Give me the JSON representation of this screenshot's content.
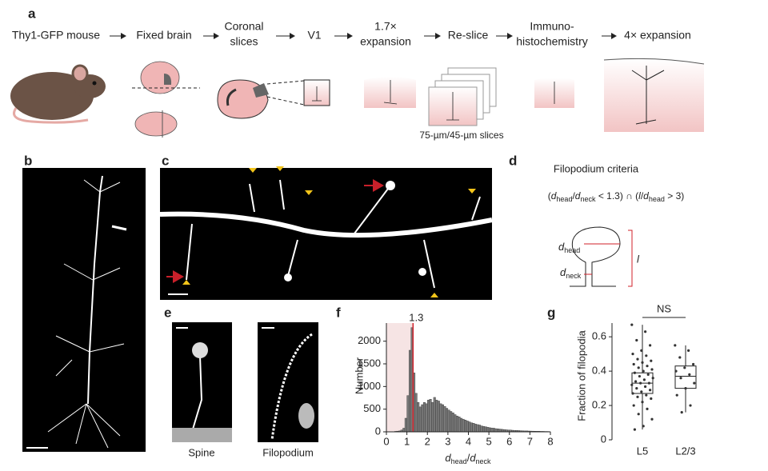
{
  "panel_a": {
    "label": "a",
    "steps": [
      [
        "Thy1-GFP mouse"
      ],
      [
        "Fixed brain"
      ],
      [
        "Coronal",
        "slices"
      ],
      [
        "V1"
      ],
      [
        "1.7×",
        "expansion"
      ],
      [
        "Re-slice"
      ],
      [
        "Immuno-",
        "histochemistry"
      ],
      [
        "4× expansion"
      ]
    ],
    "note": "75-µm/45-µm slices"
  },
  "panel_b": {
    "label": "b"
  },
  "panel_c": {
    "label": "c"
  },
  "panel_d": {
    "label": "d",
    "title": "Filopodium criteria",
    "formula": [
      "(",
      "d",
      "head",
      "/",
      "d",
      "neck",
      " < 1.3) ∩ (",
      "l",
      "/",
      "d",
      "head",
      " > 3)"
    ],
    "diagram_labels": [
      "d",
      "head",
      "d",
      "neck",
      "l"
    ]
  },
  "panel_e": {
    "label": "e",
    "captions": [
      "Spine",
      "Filopodium"
    ]
  },
  "chart_data": [
    {
      "type": "histogram",
      "panel_label": "f",
      "y_label": "Number",
      "x_label": [
        "d",
        "head",
        "/",
        "d",
        "neck"
      ],
      "bins": [
        0,
        0.1,
        0.2,
        0.3,
        0.4,
        0.5,
        0.6,
        0.7,
        0.8,
        0.9,
        1,
        1.1,
        1.2,
        1.3,
        1.4,
        1.5,
        1.6,
        1.7,
        1.8,
        1.9,
        2,
        2.1,
        2.2,
        2.3,
        2.4,
        2.5,
        2.6,
        2.7,
        2.8,
        2.9,
        3,
        3.1,
        3.2,
        3.3,
        3.4,
        3.5,
        3.6,
        3.7,
        3.8,
        3.9,
        4,
        4.1,
        4.2,
        4.3,
        4.4,
        4.5,
        4.6,
        4.7,
        4.8,
        4.9,
        5,
        5.1,
        5.2,
        5.3,
        5.4,
        5.5,
        5.6,
        5.7,
        5.8,
        5.9,
        6,
        6.1,
        6.2,
        6.3,
        6.4,
        6.5,
        6.6,
        6.7,
        6.8,
        6.9,
        7,
        7.1,
        7.2,
        7.3,
        7.4,
        7.5,
        7.6,
        7.7,
        7.8,
        7.9,
        8
      ],
      "values": [
        0,
        0,
        5,
        5,
        10,
        15,
        20,
        40,
        80,
        300,
        800,
        1800,
        2300,
        1300,
        850,
        650,
        550,
        600,
        650,
        620,
        700,
        720,
        650,
        760,
        700,
        680,
        620,
        600,
        560,
        520,
        480,
        450,
        420,
        380,
        350,
        330,
        300,
        280,
        260,
        240,
        220,
        200,
        190,
        170,
        160,
        150,
        130,
        120,
        110,
        100,
        90,
        85,
        80,
        70,
        65,
        60,
        55,
        50,
        45,
        40,
        40,
        35,
        30,
        30,
        28,
        25,
        22,
        20,
        20,
        18,
        16,
        15,
        14,
        12,
        12,
        10,
        10,
        8,
        8,
        6
      ],
      "color": "#7a7a7a",
      "threshold": 1.3,
      "threshold_color": "#d0202a",
      "shade_color": "#f6e4e4",
      "xlim": [
        0,
        8
      ],
      "xticks": [
        0,
        1,
        2,
        3,
        4,
        5,
        6,
        7,
        8
      ],
      "ylim": [
        0,
        2400
      ],
      "yticks": [
        0,
        500,
        1000,
        1500,
        2000
      ]
    },
    {
      "type": "box",
      "panel_label": "g",
      "y_label": "Fraction of filopodia",
      "categories": [
        "L5",
        "L2/3"
      ],
      "annotation": "NS",
      "boxes": [
        {
          "whisker_low": 0.06,
          "q1": 0.27,
          "median": 0.33,
          "q3": 0.39,
          "whisker_high": 0.67,
          "points": [
            0.67,
            0.63,
            0.58,
            0.55,
            0.52,
            0.5,
            0.49,
            0.47,
            0.46,
            0.45,
            0.44,
            0.43,
            0.42,
            0.41,
            0.4,
            0.39,
            0.38,
            0.37,
            0.36,
            0.35,
            0.34,
            0.33,
            0.33,
            0.32,
            0.31,
            0.3,
            0.29,
            0.28,
            0.27,
            0.26,
            0.25,
            0.24,
            0.22,
            0.2,
            0.18,
            0.15,
            0.12,
            0.08,
            0.06
          ]
        },
        {
          "whisker_low": 0.16,
          "q1": 0.3,
          "median": 0.37,
          "q3": 0.43,
          "whisker_high": 0.55,
          "points": [
            0.55,
            0.52,
            0.48,
            0.44,
            0.42,
            0.4,
            0.38,
            0.36,
            0.33,
            0.3,
            0.26,
            0.2,
            0.16
          ]
        }
      ],
      "ylim": [
        0,
        0.68
      ],
      "yticks": [
        0,
        0.2,
        0.4,
        0.6
      ]
    }
  ]
}
